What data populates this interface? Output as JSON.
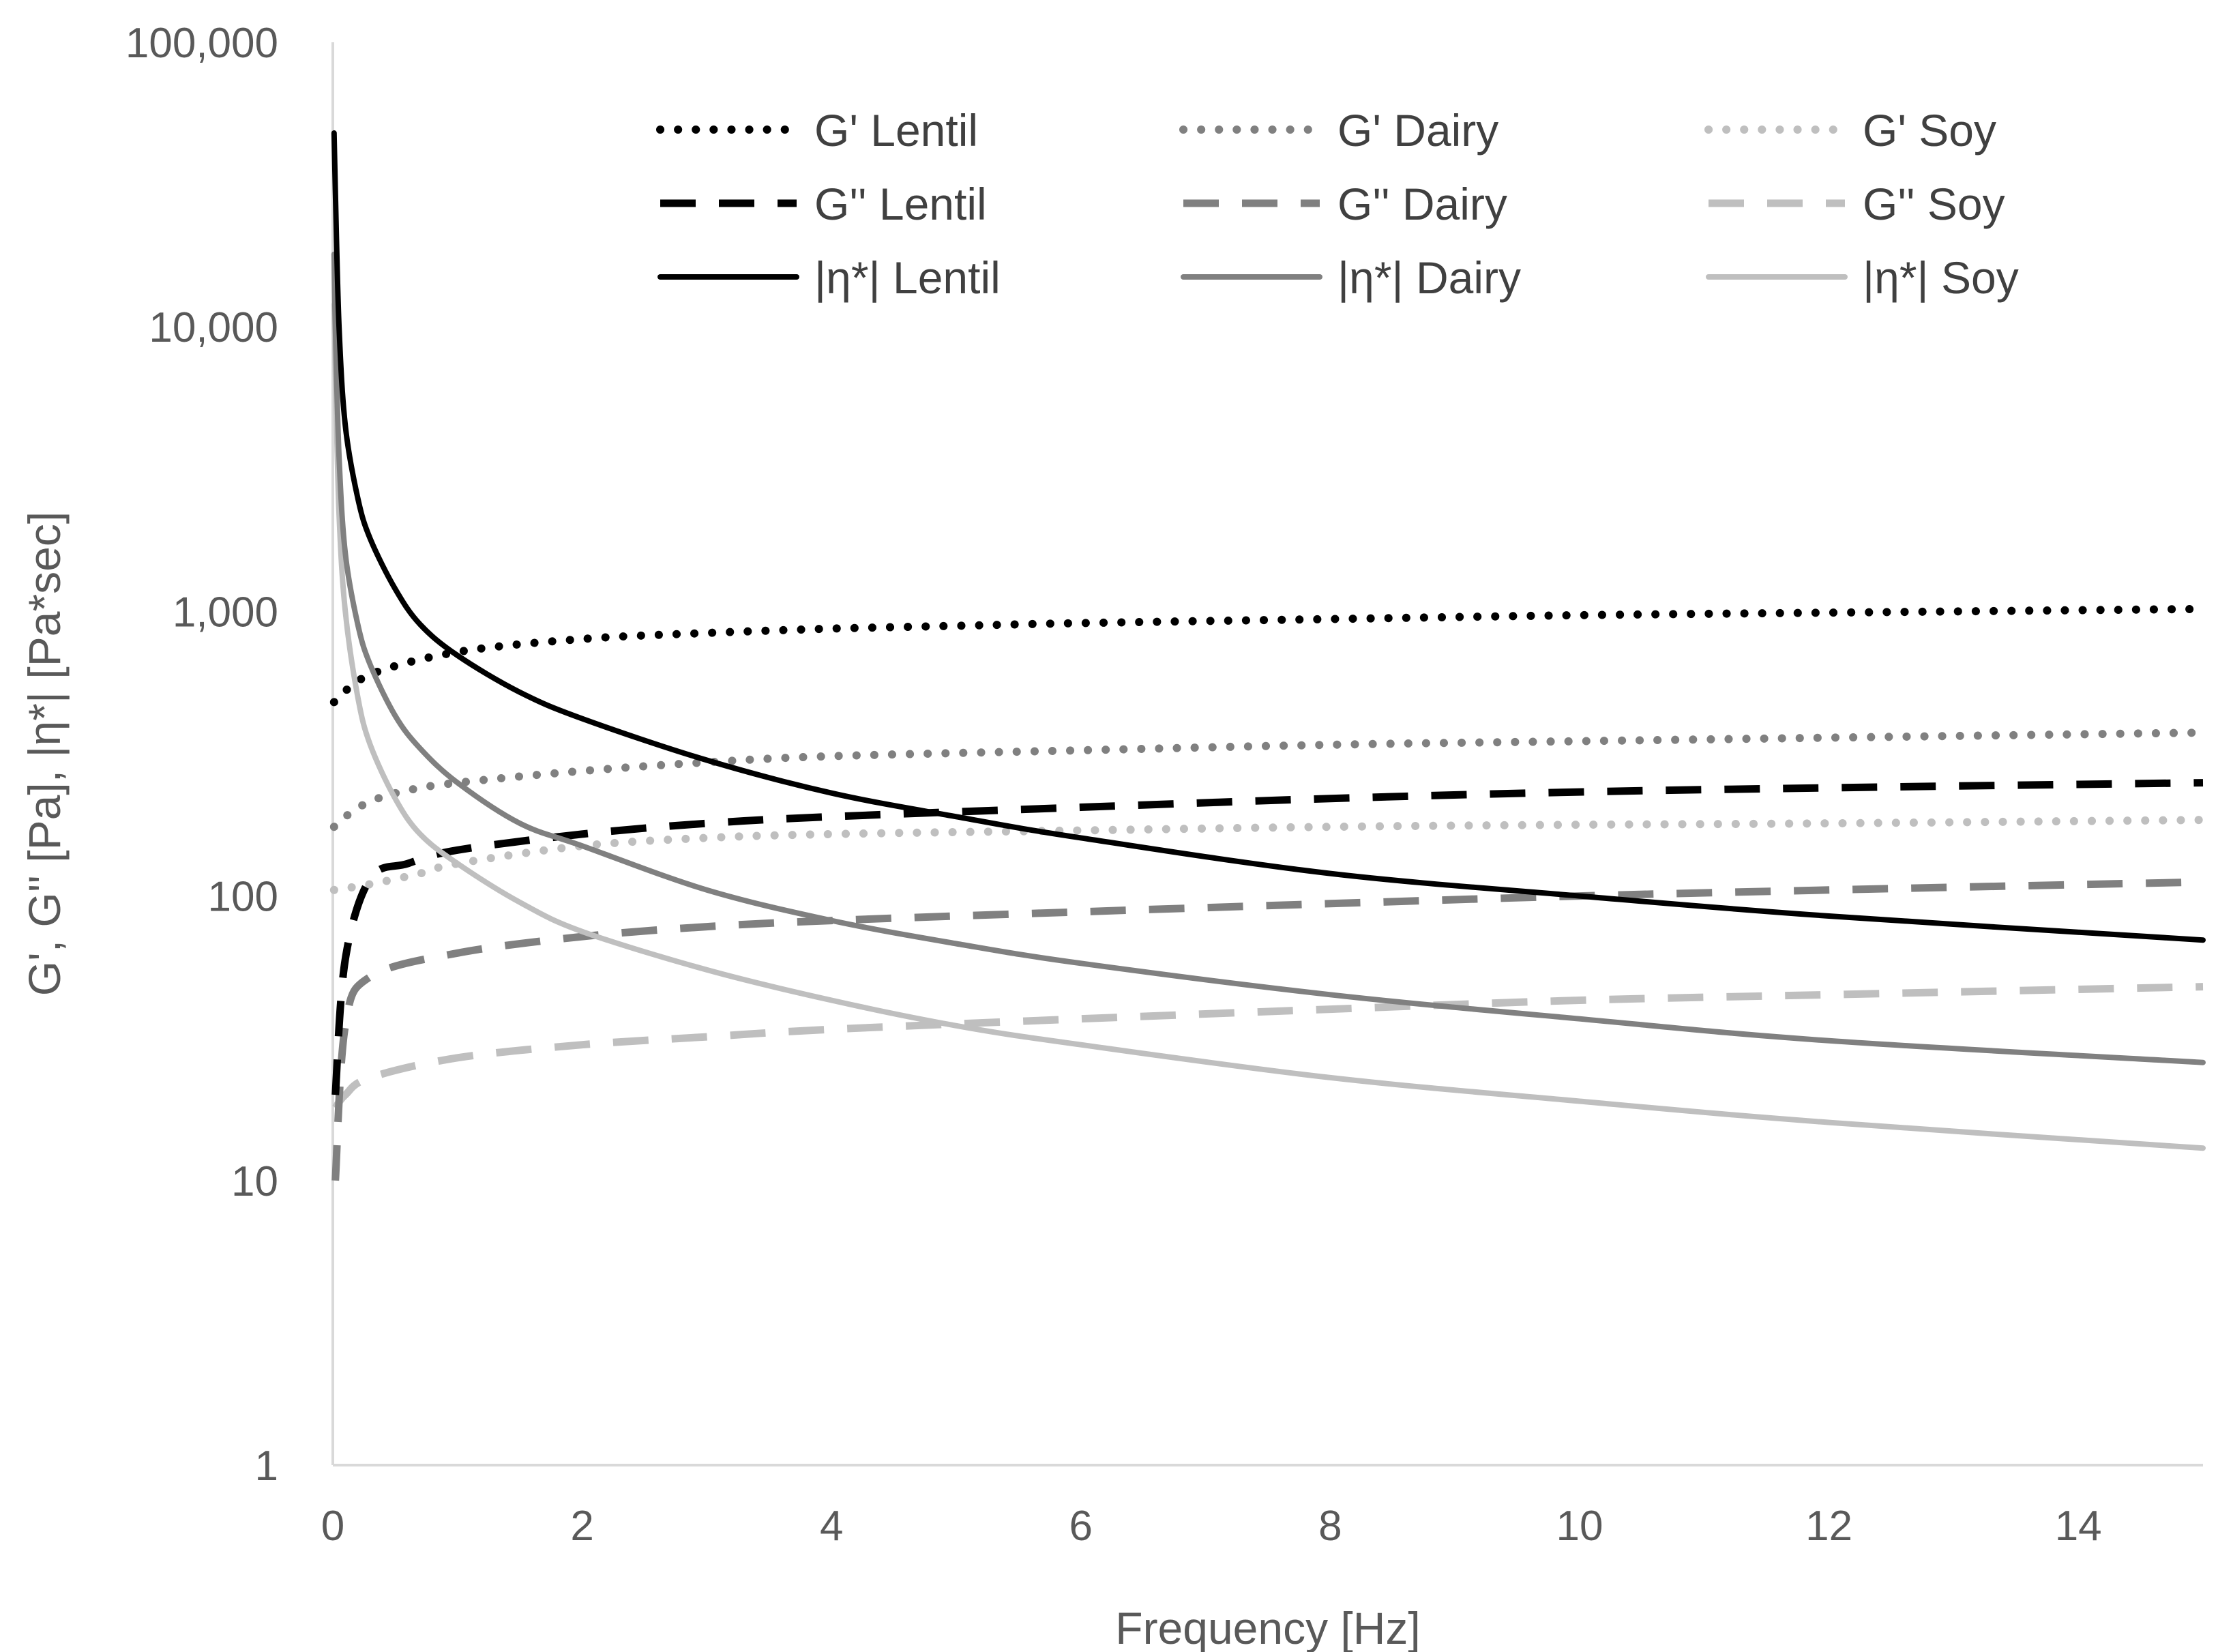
{
  "chart_data": {
    "type": "line",
    "title": "",
    "xlabel": "Frequency [Hz]",
    "ylabel": "G', G'' [Pa], |η*| [Pa*sec]",
    "xlim": [
      0,
      15
    ],
    "ylim": [
      1,
      100000
    ],
    "yscale": "log",
    "grid": false,
    "legend_position": "top",
    "x_ticks": [
      0,
      2,
      4,
      6,
      8,
      10,
      12,
      14
    ],
    "x_tick_labels": [
      "0",
      "2",
      "4",
      "6",
      "8",
      "10",
      "12",
      "14"
    ],
    "y_ticks": [
      1,
      10,
      100,
      1000,
      10000,
      100000
    ],
    "y_tick_labels": [
      "1",
      "10",
      "100",
      "1,000",
      "10,000",
      "100,000"
    ],
    "series": [
      {
        "name": "G' Lentil",
        "style": "dotted",
        "color": "#000000",
        "x": [
          0.01,
          0.3,
          1,
          2,
          3,
          4,
          5,
          6,
          8,
          10,
          12,
          15
        ],
        "y": [
          480,
          600,
          720,
          800,
          840,
          870,
          890,
          910,
          940,
          970,
          990,
          1020
        ]
      },
      {
        "name": "G' Dairy",
        "style": "dotted",
        "color": "#808080",
        "x": [
          0.01,
          0.1,
          0.3,
          0.6,
          1,
          2,
          3,
          4,
          6,
          8,
          10,
          12,
          15
        ],
        "y": [
          175,
          190,
          215,
          235,
          250,
          275,
          295,
          310,
          325,
          340,
          350,
          360,
          375
        ]
      },
      {
        "name": "G' Soy",
        "style": "dotted",
        "color": "#bfbfbf",
        "x": [
          0.01,
          0.3,
          0.7,
          1,
          2,
          3,
          4,
          6,
          8,
          10,
          12,
          15
        ],
        "y": [
          105,
          110,
          120,
          130,
          150,
          160,
          165,
          170,
          175,
          178,
          180,
          185
        ]
      },
      {
        "name": "G'' Lentil",
        "style": "dashed",
        "color": "#000000",
        "x": [
          0.02,
          0.1,
          0.3,
          0.6,
          1,
          2,
          3,
          4,
          6,
          8,
          10,
          12,
          15
        ],
        "y": [
          20,
          60,
          115,
          130,
          145,
          165,
          180,
          190,
          205,
          220,
          232,
          240,
          250
        ]
      },
      {
        "name": "G'' Dairy",
        "style": "dashed",
        "color": "#808080",
        "x": [
          0.02,
          0.1,
          0.3,
          1,
          2,
          3,
          4,
          6,
          8,
          10,
          12,
          15
        ],
        "y": [
          10,
          35,
          52,
          63,
          72,
          78,
          82,
          88,
          94,
          100,
          105,
          112
        ]
      },
      {
        "name": "G'' Soy",
        "style": "dashed",
        "color": "#bfbfbf",
        "x": [
          0.02,
          0.1,
          0.3,
          1,
          2,
          3,
          4,
          6,
          8,
          10,
          12,
          15
        ],
        "y": [
          18,
          20,
          23,
          27,
          30,
          32,
          34,
          37,
          40,
          43,
          45,
          48
        ]
      },
      {
        "name": "|η*| Lentil",
        "style": "solid",
        "color": "#000000",
        "x": [
          0.01,
          0.02,
          0.05,
          0.1,
          0.2,
          0.3,
          0.5,
          0.7,
          1,
          1.5,
          2,
          3,
          4,
          5,
          6,
          8,
          10,
          12,
          15
        ],
        "y": [
          48000,
          30000,
          10000,
          4500,
          2500,
          1800,
          1200,
          900,
          700,
          520,
          420,
          300,
          230,
          190,
          160,
          120,
          100,
          85,
          70
        ]
      },
      {
        "name": "|η*| Dairy",
        "style": "solid",
        "color": "#808080",
        "x": [
          0.01,
          0.02,
          0.05,
          0.1,
          0.2,
          0.3,
          0.5,
          0.7,
          1,
          1.5,
          2,
          3,
          4,
          5,
          6,
          8,
          10,
          12,
          15
        ],
        "y": [
          18000,
          10000,
          3500,
          1600,
          900,
          650,
          430,
          330,
          250,
          180,
          150,
          105,
          82,
          68,
          58,
          45,
          37,
          31,
          26
        ]
      },
      {
        "name": "|η*| Soy",
        "style": "solid",
        "color": "#bfbfbf",
        "x": [
          0.01,
          0.02,
          0.05,
          0.1,
          0.2,
          0.3,
          0.5,
          0.7,
          1,
          1.5,
          2,
          3,
          4,
          5,
          6,
          8,
          10,
          12,
          15
        ],
        "y": [
          12000,
          7000,
          2200,
          1000,
          500,
          340,
          220,
          165,
          130,
          95,
          75,
          55,
          43,
          35,
          30,
          23,
          19,
          16,
          13
        ]
      }
    ]
  }
}
